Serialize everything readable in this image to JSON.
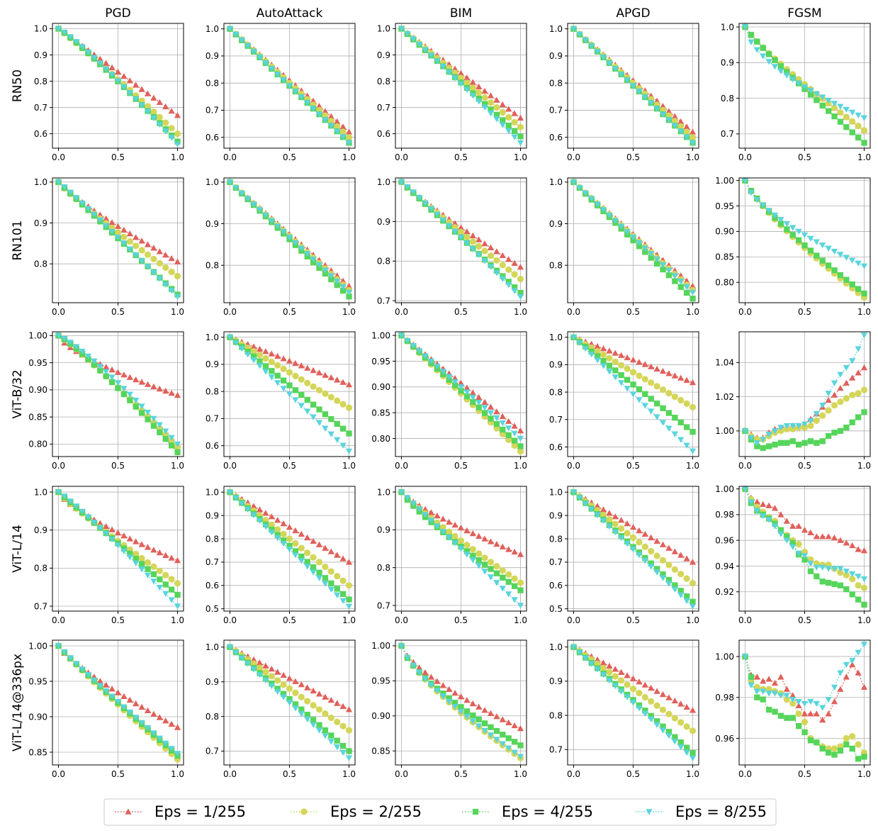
{
  "figure": {
    "column_titles": [
      "PGD",
      "AutoAttack",
      "BIM",
      "APGD",
      "FGSM"
    ],
    "row_labels": [
      "RN50",
      "RN101",
      "ViT-B/32",
      "ViT-L/14",
      "ViT-L/14@336px"
    ]
  },
  "legend": {
    "entries": [
      {
        "label": "Eps = 1/255",
        "color": "#e0605a",
        "marker": "triangle-up"
      },
      {
        "label": "Eps = 2/255",
        "color": "#d4d65a",
        "marker": "circle"
      },
      {
        "label": "Eps = 4/255",
        "color": "#55d55a",
        "marker": "square"
      },
      {
        "label": "Eps = 8/255",
        "color": "#5ad4dc",
        "marker": "triangle-down"
      }
    ]
  },
  "chart_data": {
    "type": "line",
    "x_range": [
      0,
      1
    ],
    "n_points": 21,
    "x_ticks": [
      "0.0",
      "0.5",
      "1.0"
    ],
    "line_style": "dotted",
    "series_names": [
      "Eps = 1/255",
      "Eps = 2/255",
      "Eps = 4/255",
      "Eps = 8/255"
    ],
    "panels": [
      [
        {
          "ylim": [
            0.545,
            1.02
          ],
          "yticks": [
            "0.6",
            "0.7",
            "0.8",
            "0.9",
            "1.0"
          ],
          "end": [
            0.67,
            0.6,
            0.57,
            0.56
          ],
          "pow": [
            1,
            1.05,
            1.1,
            1.15
          ]
        },
        {
          "ylim": [
            0.56,
            1.02
          ],
          "yticks": [
            "0.6",
            "0.7",
            "0.8",
            "0.9",
            "1.0"
          ],
          "end": [
            0.62,
            0.6,
            0.58,
            0.58
          ],
          "pow": [
            1,
            1,
            1,
            1
          ]
        },
        {
          "ylim": [
            0.545,
            1.02
          ],
          "yticks": [
            "0.6",
            "0.7",
            "0.8",
            "0.9",
            "1.0"
          ],
          "end": [
            0.66,
            0.625,
            0.59,
            0.565
          ],
          "pow": [
            1,
            1,
            1,
            1.05
          ]
        },
        {
          "ylim": [
            0.56,
            1.02
          ],
          "yticks": [
            "0.6",
            "0.7",
            "0.8",
            "0.9",
            "1.0"
          ],
          "end": [
            0.62,
            0.6,
            0.58,
            0.58
          ],
          "pow": [
            1,
            1,
            1,
            1
          ]
        },
        {
          "ylim": [
            0.66,
            1.01
          ],
          "yticks": [
            "0.7",
            "0.8",
            "0.9",
            "1.0"
          ],
          "end": [
            0.71,
            0.71,
            0.675,
            0.745
          ],
          "pow": [
            0.85,
            0.85,
            0.9,
            0.6
          ]
        }
      ],
      [
        {
          "ylim": [
            0.705,
            1.01
          ],
          "yticks": [
            "0.8",
            "0.9",
            "1.0"
          ],
          "end": [
            0.805,
            0.77,
            0.725,
            0.72
          ],
          "pow": [
            0.85,
            0.9,
            1,
            1.05
          ]
        },
        {
          "ylim": [
            0.71,
            1.01
          ],
          "yticks": [
            "0.8",
            "0.9",
            "1.0"
          ],
          "end": [
            0.75,
            0.74,
            0.725,
            0.735
          ],
          "pow": [
            1,
            1,
            1,
            1
          ]
        },
        {
          "ylim": [
            0.695,
            1.01
          ],
          "yticks": [
            "0.7",
            "0.8",
            "0.9",
            "1.0"
          ],
          "end": [
            0.785,
            0.755,
            0.72,
            0.71
          ],
          "pow": [
            0.9,
            0.95,
            1,
            1.05
          ]
        },
        {
          "ylim": [
            0.71,
            1.01
          ],
          "yticks": [
            "0.8",
            "0.9",
            "1.0"
          ],
          "end": [
            0.75,
            0.74,
            0.72,
            0.735
          ],
          "pow": [
            1,
            1,
            1,
            1
          ]
        },
        {
          "ylim": [
            0.76,
            1.005
          ],
          "yticks": [
            "0.80",
            "0.85",
            "0.90",
            "0.95",
            "1.00"
          ],
          "end": [
            0.775,
            0.77,
            0.778,
            0.832
          ],
          "pow": [
            0.8,
            0.8,
            0.8,
            0.65
          ]
        }
      ],
      [
        {
          "ylim": [
            0.777,
            1.007
          ],
          "yticks": [
            "0.80",
            "0.85",
            "0.90",
            "0.95",
            "1.00"
          ],
          "end": [
            0.89,
            0.795,
            0.785,
            0.8
          ],
          "pow": [
            0.7,
            1.1,
            1.15,
            1.2
          ]
        },
        {
          "ylim": [
            0.56,
            1.02
          ],
          "yticks": [
            "0.6",
            "0.7",
            "0.8",
            "0.9",
            "1.0"
          ],
          "end": [
            0.825,
            0.74,
            0.645,
            0.58
          ],
          "pow": [
            1,
            1,
            1,
            1
          ]
        },
        {
          "ylim": [
            0.765,
            1.007
          ],
          "yticks": [
            "0.80",
            "0.85",
            "0.90",
            "0.95",
            "1.00"
          ],
          "end": [
            0.815,
            0.775,
            0.785,
            0.8
          ],
          "pow": [
            1,
            1,
            1,
            1
          ]
        },
        {
          "ylim": [
            0.565,
            1.02
          ],
          "yticks": [
            "0.6",
            "0.7",
            "0.8",
            "0.9",
            "1.0"
          ],
          "end": [
            0.835,
            0.745,
            0.655,
            0.585
          ],
          "pow": [
            1,
            1,
            1,
            1
          ]
        },
        {
          "ylim": [
            0.985,
            1.058
          ],
          "yticks": [
            "1.00",
            "1.02",
            "1.04"
          ],
          "values": [
            [
              1.0,
              0.998,
              0.996,
              0.996,
              0.999,
              1.001,
              1.002,
              1.002,
              1.003,
              1.003,
              1.004,
              1.007,
              1.01,
              1.014,
              1.018,
              1.021,
              1.025,
              1.028,
              1.031,
              1.034,
              1.037
            ],
            [
              1.0,
              0.997,
              0.995,
              0.995,
              0.997,
              0.999,
              1.0,
              1.001,
              1.001,
              1.002,
              1.002,
              1.003,
              1.006,
              1.009,
              1.012,
              1.015,
              1.017,
              1.019,
              1.021,
              1.022,
              1.024
            ],
            [
              1.0,
              0.995,
              0.991,
              0.99,
              0.991,
              0.992,
              0.993,
              0.993,
              0.994,
              0.992,
              0.993,
              0.994,
              0.993,
              0.994,
              0.997,
              0.999,
              1.0,
              1.002,
              1.005,
              1.008,
              1.011
            ],
            [
              1.0,
              0.996,
              0.993,
              0.995,
              0.998,
              1.0,
              1.002,
              1.003,
              1.003,
              1.003,
              1.004,
              1.006,
              1.01,
              1.015,
              1.022,
              1.028,
              1.033,
              1.037,
              1.041,
              1.048,
              1.056
            ]
          ]
        }
      ],
      [
        {
          "ylim": [
            0.687,
            1.015
          ],
          "yticks": [
            "0.7",
            "0.8",
            "0.9",
            "1.0"
          ],
          "end": [
            0.82,
            0.76,
            0.73,
            0.7
          ],
          "pow": [
            0.75,
            0.9,
            1,
            1.1
          ]
        },
        {
          "ylim": [
            0.49,
            1.025
          ],
          "yticks": [
            "0.5",
            "0.6",
            "0.7",
            "0.8",
            "0.9",
            "1.0"
          ],
          "end": [
            0.7,
            0.6,
            0.54,
            0.51
          ],
          "pow": [
            1,
            1,
            1,
            1
          ]
        },
        {
          "ylim": [
            0.685,
            1.015
          ],
          "yticks": [
            "0.7",
            "0.8",
            "0.9",
            "1.0"
          ],
          "end": [
            0.835,
            0.76,
            0.74,
            0.7
          ],
          "pow": [
            0.8,
            0.9,
            0.85,
            1
          ]
        },
        {
          "ylim": [
            0.49,
            1.025
          ],
          "yticks": [
            "0.5",
            "0.6",
            "0.7",
            "0.8",
            "0.9",
            "1.0"
          ],
          "end": [
            0.7,
            0.61,
            0.53,
            0.51
          ],
          "pow": [
            1,
            1,
            1,
            1
          ]
        },
        {
          "ylim": [
            0.905,
            1.002
          ],
          "yticks": [
            "0.92",
            "0.94",
            "0.96",
            "0.98",
            "1.00"
          ],
          "values": [
            [
              1.0,
              0.993,
              0.99,
              0.988,
              0.987,
              0.985,
              0.98,
              0.975,
              0.971,
              0.971,
              0.968,
              0.966,
              0.963,
              0.963,
              0.963,
              0.962,
              0.96,
              0.958,
              0.956,
              0.953,
              0.952
            ],
            [
              1.0,
              0.992,
              0.986,
              0.982,
              0.978,
              0.975,
              0.967,
              0.964,
              0.96,
              0.957,
              0.951,
              0.945,
              0.942,
              0.941,
              0.941,
              0.938,
              0.935,
              0.933,
              0.93,
              0.925,
              0.923
            ],
            [
              1.0,
              0.989,
              0.983,
              0.98,
              0.977,
              0.973,
              0.968,
              0.963,
              0.958,
              0.949,
              0.945,
              0.936,
              0.932,
              0.928,
              0.927,
              0.926,
              0.925,
              0.922,
              0.918,
              0.914,
              0.91
            ],
            [
              1.0,
              0.99,
              0.983,
              0.979,
              0.976,
              0.971,
              0.965,
              0.96,
              0.955,
              0.95,
              0.948,
              0.942,
              0.939,
              0.939,
              0.938,
              0.938,
              0.938,
              0.936,
              0.934,
              0.932,
              0.93
            ]
          ]
        }
      ],
      [
        {
          "ylim": [
            0.832,
            1.008
          ],
          "yticks": [
            "0.85",
            "0.90",
            "0.95",
            "1.00"
          ],
          "end": [
            0.885,
            0.84,
            0.845,
            0.848
          ],
          "pow": [
            0.8,
            0.95,
            0.95,
            0.95
          ]
        },
        {
          "ylim": [
            0.66,
            1.02
          ],
          "yticks": [
            "0.7",
            "0.8",
            "0.9",
            "1.0"
          ],
          "end": [
            0.82,
            0.76,
            0.7,
            0.68
          ],
          "pow": [
            1,
            1,
            1,
            1
          ]
        },
        {
          "ylim": [
            0.83,
            1.008
          ],
          "yticks": [
            "0.85",
            "0.90",
            "0.95",
            "1.00"
          ],
          "end": [
            0.882,
            0.84,
            0.858,
            0.842
          ],
          "pow": [
            0.7,
            0.75,
            0.7,
            0.75
          ]
        },
        {
          "ylim": [
            0.655,
            1.02
          ],
          "yticks": [
            "0.7",
            "0.8",
            "0.9",
            "1.0"
          ],
          "end": [
            0.815,
            0.755,
            0.69,
            0.675
          ],
          "pow": [
            1,
            1,
            1,
            1
          ]
        },
        {
          "ylim": [
            0.947,
            1.008
          ],
          "yticks": [
            "0.96",
            "0.98",
            "1.00"
          ],
          "values": [
            [
              1.0,
              0.991,
              0.99,
              0.988,
              0.989,
              0.987,
              0.99,
              0.984,
              0.981,
              0.976,
              0.972,
              0.972,
              0.972,
              0.969,
              0.972,
              0.978,
              0.984,
              0.99,
              0.996,
              0.992,
              0.985
            ],
            [
              1.0,
              0.988,
              0.985,
              0.984,
              0.984,
              0.983,
              0.982,
              0.979,
              0.977,
              0.972,
              0.968,
              0.96,
              0.958,
              0.956,
              0.955,
              0.955,
              0.956,
              0.96,
              0.961,
              0.957,
              0.953
            ],
            [
              1.0,
              0.99,
              0.98,
              0.979,
              0.974,
              0.973,
              0.971,
              0.97,
              0.97,
              0.966,
              0.963,
              0.959,
              0.958,
              0.955,
              0.953,
              0.952,
              0.954,
              0.957,
              0.955,
              0.95,
              0.951
            ],
            [
              1.0,
              0.986,
              0.983,
              0.983,
              0.982,
              0.982,
              0.981,
              0.981,
              0.979,
              0.978,
              0.977,
              0.978,
              0.977,
              0.975,
              0.979,
              0.985,
              0.992,
              0.996,
              0.998,
              1.002,
              1.006
            ]
          ]
        }
      ]
    ]
  }
}
